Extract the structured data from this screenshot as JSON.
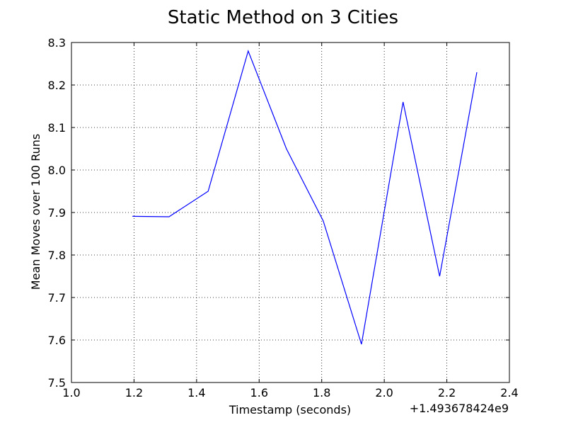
{
  "chart_data": {
    "type": "line",
    "title": "Static Method on 3 Cities",
    "xlabel": "Timestamp (seconds)",
    "ylabel": "Mean Moves over 100 Runs",
    "x_offset_label": "+1.493678424e9",
    "xlim": [
      1.0,
      2.4
    ],
    "ylim": [
      7.5,
      8.3
    ],
    "xticks": [
      1.0,
      1.2,
      1.4,
      1.6,
      1.8,
      2.0,
      2.2,
      2.4
    ],
    "yticks": [
      7.5,
      7.6,
      7.7,
      7.8,
      7.9,
      8.0,
      8.1,
      8.2,
      8.3
    ],
    "xtick_labels": [
      "1.0",
      "1.2",
      "1.4",
      "1.6",
      "1.8",
      "2.0",
      "2.2",
      "2.4"
    ],
    "ytick_labels": [
      "7.5",
      "7.6",
      "7.7",
      "7.8",
      "7.9",
      "8.0",
      "8.1",
      "8.2",
      "8.3"
    ],
    "grid": true,
    "series": [
      {
        "color": "#0000ff",
        "x": [
          1.195,
          1.312,
          1.437,
          1.565,
          1.687,
          1.805,
          1.927,
          2.06,
          2.177,
          2.296
        ],
        "y": [
          7.891,
          7.89,
          7.95,
          8.28,
          8.05,
          7.88,
          7.59,
          8.16,
          7.75,
          8.23
        ]
      }
    ]
  }
}
